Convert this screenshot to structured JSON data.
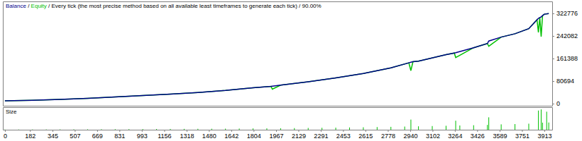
{
  "chart_data": [
    {
      "type": "line",
      "title": "Balance / Equity / Every tick (the most precise method based on all available least timeframes to generate each tick) / 90.00%",
      "x": [
        0,
        200,
        400,
        600,
        800,
        1000,
        1200,
        1400,
        1600,
        1800,
        1930,
        1940,
        2000,
        2200,
        2400,
        2600,
        2800,
        2930,
        2945,
        2960,
        3000,
        3200,
        3260,
        3270,
        3400,
        3500,
        3510,
        3600,
        3700,
        3800,
        3860,
        3870,
        3880,
        3890,
        3900,
        3913,
        3945
      ],
      "series": [
        {
          "name": "Balance",
          "color": "#00008b",
          "values": [
            10000,
            12000,
            15000,
            19000,
            24000,
            29000,
            34000,
            40000,
            47000,
            57000,
            62000,
            62500,
            66000,
            78000,
            92000,
            108000,
            128000,
            146000,
            148000,
            150000,
            152000,
            175000,
            181000,
            182000,
            200000,
            215000,
            224000,
            238000,
            250000,
            268000,
            300000,
            305000,
            308000,
            310000,
            315000,
            320000,
            322000
          ]
        },
        {
          "name": "Equity",
          "color": "#00c000",
          "values": [
            10000,
            12000,
            15000,
            19000,
            24000,
            29000,
            34000,
            40000,
            47000,
            57000,
            62000,
            52000,
            66000,
            78000,
            92000,
            108000,
            128000,
            146000,
            118000,
            150000,
            152000,
            175000,
            181000,
            165000,
            200000,
            215000,
            205000,
            238000,
            250000,
            268000,
            300000,
            255000,
            308000,
            240000,
            315000,
            320000,
            322000
          ]
        }
      ],
      "xlim": [
        -15,
        3970
      ],
      "ylim": [
        -7566,
        365650
      ],
      "yticks": [
        0,
        80694,
        161388,
        242082,
        322776
      ],
      "tick_labels": "y"
    },
    {
      "type": "bar",
      "title": "Size",
      "x": [
        0,
        100,
        200,
        300,
        400,
        500,
        600,
        700,
        800,
        900,
        1000,
        1100,
        1200,
        1300,
        1400,
        1500,
        1600,
        1700,
        1800,
        1900,
        2000,
        2100,
        2200,
        2300,
        2400,
        2500,
        2600,
        2700,
        2800,
        2900,
        2945,
        3000,
        3100,
        3200,
        3270,
        3300,
        3400,
        3500,
        3510,
        3600,
        3700,
        3800,
        3870,
        3890,
        3900,
        3930,
        3945
      ],
      "values": [
        0.1,
        0.11,
        0.12,
        0.14,
        0.15,
        0.17,
        0.19,
        0.21,
        0.24,
        0.26,
        0.29,
        0.31,
        0.34,
        0.37,
        0.4,
        0.43,
        0.47,
        0.52,
        0.57,
        0.6,
        0.66,
        0.72,
        0.78,
        0.85,
        0.92,
        1.0,
        1.08,
        1.18,
        1.28,
        1.4,
        4.5,
        1.52,
        1.63,
        1.75,
        4.0,
        1.88,
        2.0,
        2.15,
        5.5,
        2.38,
        2.5,
        2.68,
        8.5,
        9.0,
        3.15,
        8.0,
        3.2
      ],
      "color": "#00c000",
      "xlim": [
        -15,
        3970
      ],
      "ylim": [
        0,
        10
      ],
      "xticks": [
        0,
        182,
        345,
        507,
        669,
        831,
        993,
        1156,
        1318,
        1480,
        1642,
        1804,
        1967,
        2129,
        2291,
        2453,
        2615,
        2778,
        2940,
        3102,
        3264,
        3426,
        3589,
        3751,
        3913
      ],
      "tick_labels": "x"
    }
  ]
}
